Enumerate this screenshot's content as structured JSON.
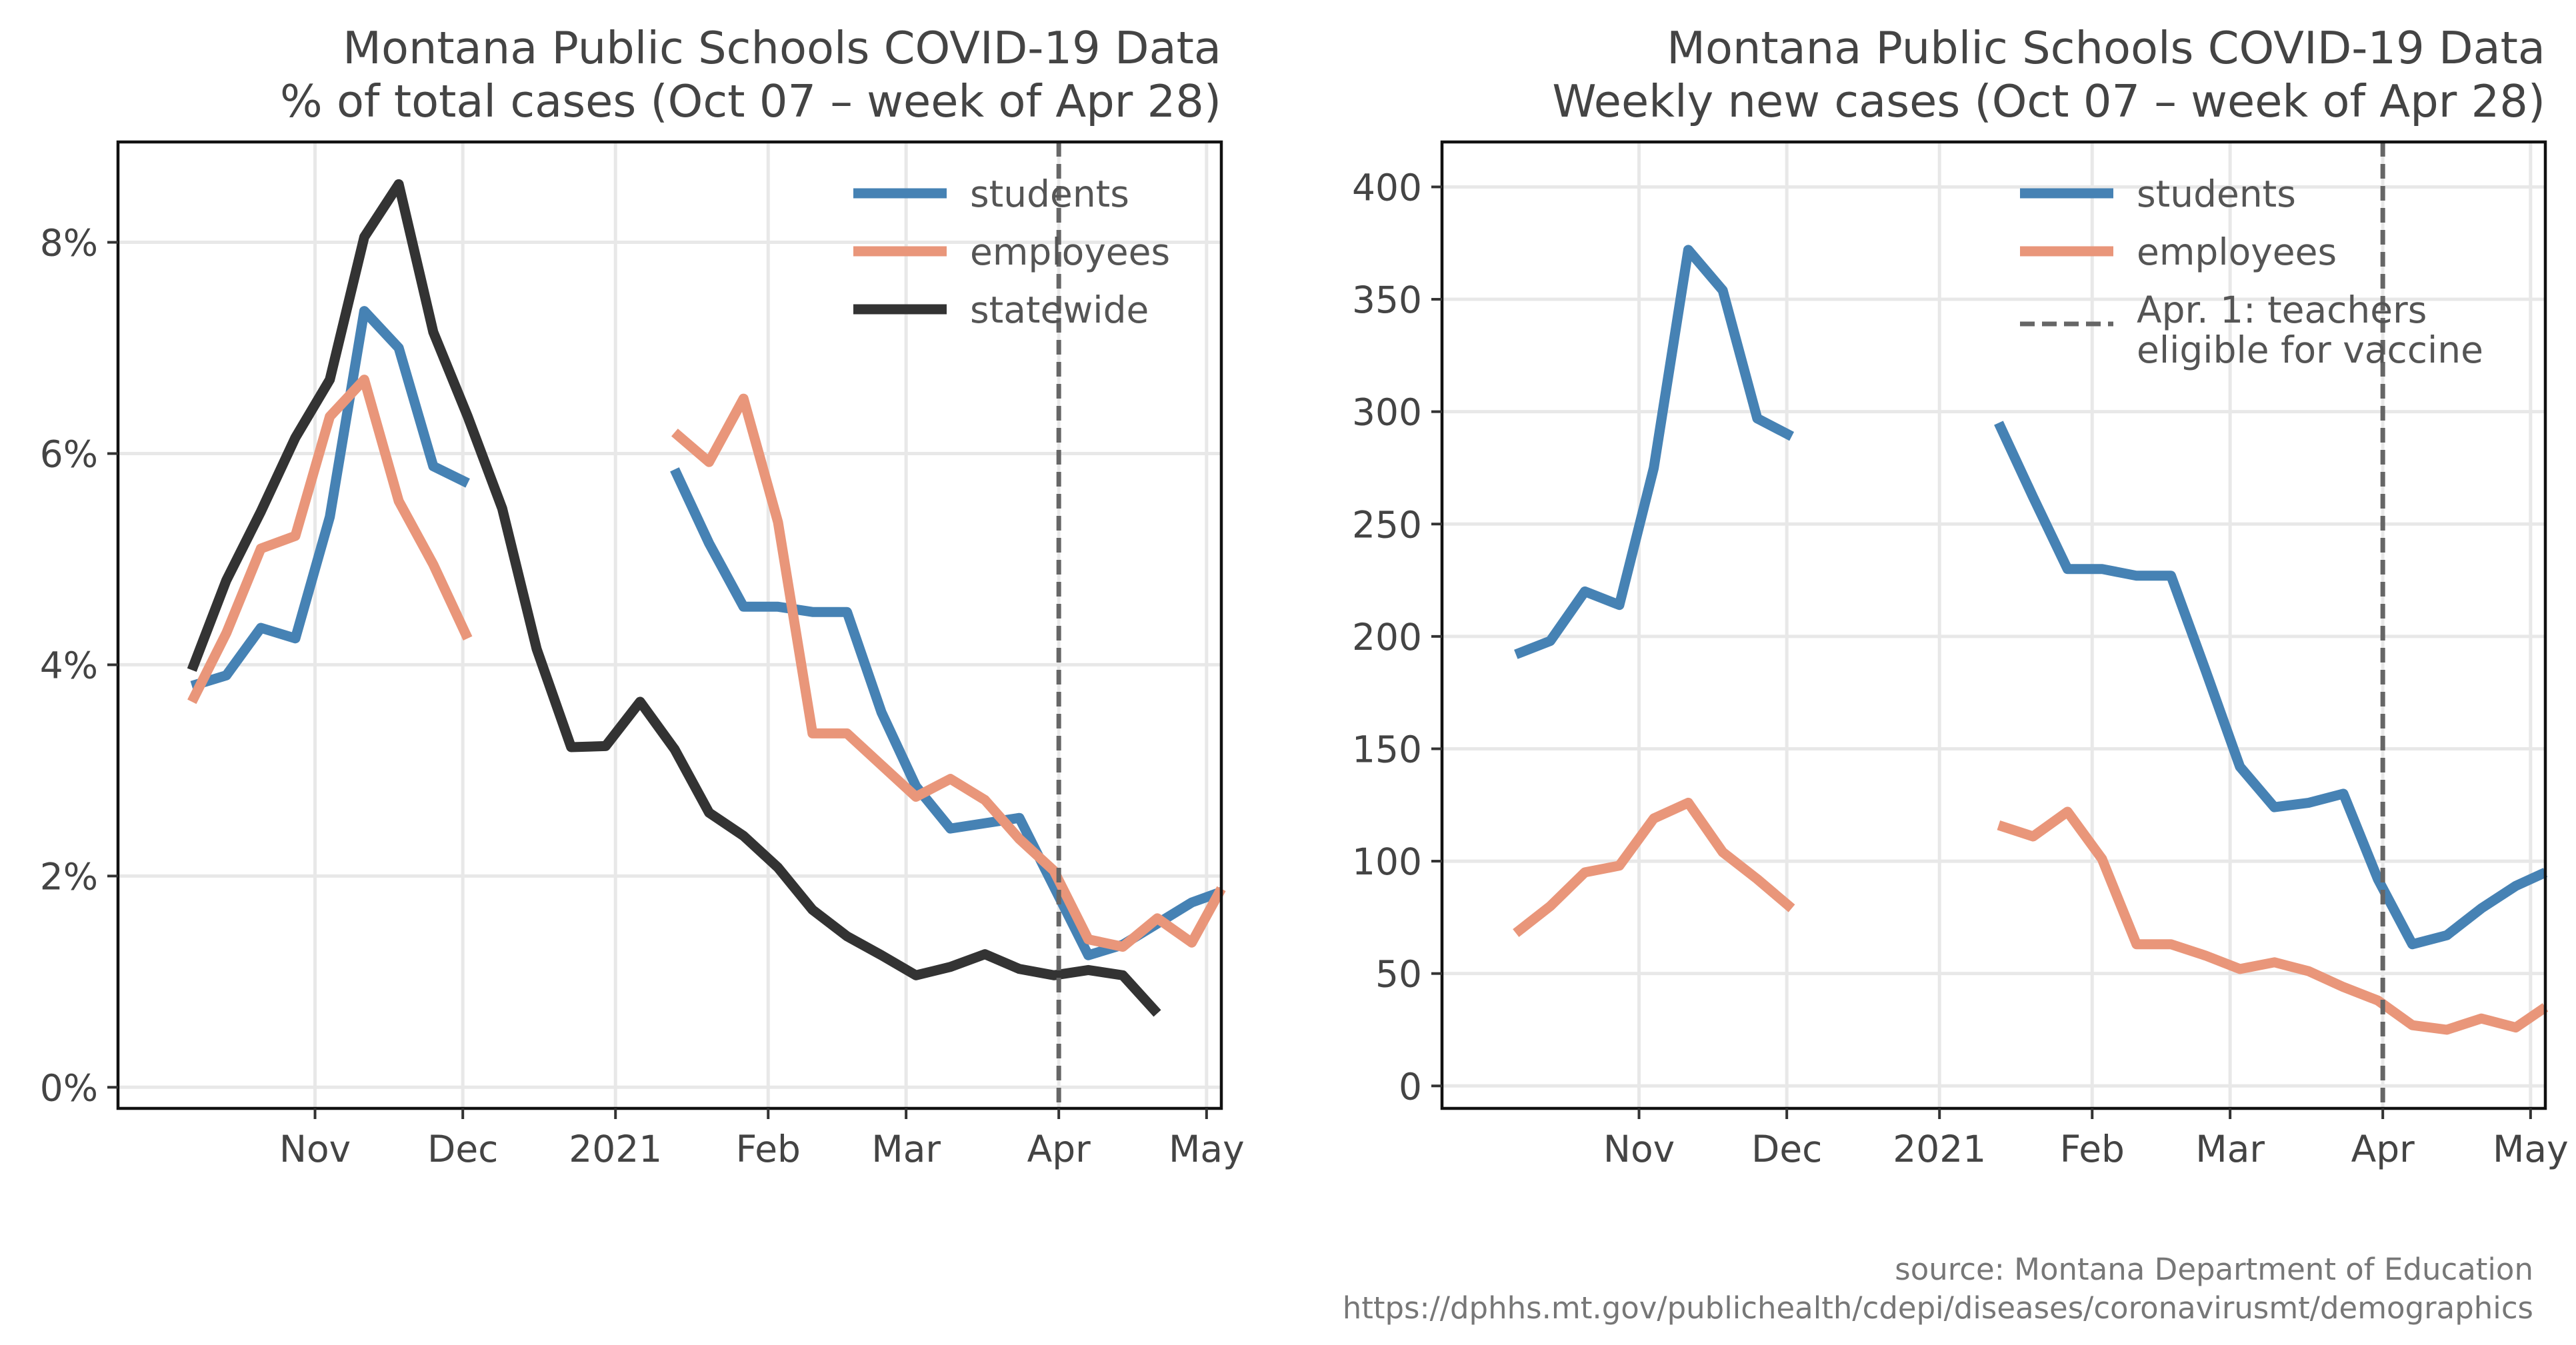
{
  "source": {
    "line1": "source: Montana Department of Education",
    "line2": "https://dphhs.mt.gov/publichealth/cdepi/diseases/coronavirusmt/demographics"
  },
  "colors": {
    "students": "#4682b4",
    "employees": "#e9967a",
    "statewide": "#333333",
    "vline": "#666666"
  },
  "chart_data": [
    {
      "type": "line",
      "title": "Montana Public Schools COVID-19 Data",
      "subtitle": "% of total cases (Oct 07 – week of Apr 28)",
      "xlabel": "",
      "ylabel": "",
      "x_axis": "date",
      "xlim": [
        "2020-09-22",
        "2021-05-04"
      ],
      "xticks": [
        {
          "date": "2020-11-01",
          "label": "Nov"
        },
        {
          "date": "2020-12-01",
          "label": "Dec"
        },
        {
          "date": "2021-01-01",
          "label": "2021"
        },
        {
          "date": "2021-02-01",
          "label": "Feb"
        },
        {
          "date": "2021-03-01",
          "label": "Mar"
        },
        {
          "date": "2021-04-01",
          "label": "Apr"
        },
        {
          "date": "2021-05-01",
          "label": "May"
        }
      ],
      "ylim": [
        -0.2,
        8.95
      ],
      "yticks": [
        {
          "value": 0,
          "label": "0%"
        },
        {
          "value": 2,
          "label": "2%"
        },
        {
          "value": 4,
          "label": "4%"
        },
        {
          "value": 6,
          "label": "6%"
        },
        {
          "value": 8,
          "label": "8%"
        }
      ],
      "grid": true,
      "legend_position": "top-right",
      "vline": {
        "date": "2021-04-01"
      },
      "series": [
        {
          "name": "students",
          "color_key": "students",
          "segments": [
            [
              [
                "2020-10-07",
                3.8
              ],
              [
                "2020-10-14",
                3.9
              ],
              [
                "2020-10-21",
                4.35
              ],
              [
                "2020-10-28",
                4.25
              ],
              [
                "2020-11-04",
                5.4
              ],
              [
                "2020-11-11",
                7.35
              ],
              [
                "2020-11-18",
                7.0
              ],
              [
                "2020-11-25",
                5.88
              ],
              [
                "2020-12-02",
                5.72
              ]
            ],
            [
              [
                "2021-01-13",
                5.85
              ],
              [
                "2021-01-20",
                5.15
              ],
              [
                "2021-01-27",
                4.55
              ],
              [
                "2021-02-03",
                4.55
              ],
              [
                "2021-02-10",
                4.5
              ],
              [
                "2021-02-17",
                4.5
              ],
              [
                "2021-02-24",
                3.55
              ],
              [
                "2021-03-03",
                2.85
              ],
              [
                "2021-03-10",
                2.45
              ],
              [
                "2021-03-17",
                2.5
              ],
              [
                "2021-03-24",
                2.55
              ],
              [
                "2021-03-31",
                1.9
              ],
              [
                "2021-04-07",
                1.25
              ],
              [
                "2021-04-14",
                1.35
              ],
              [
                "2021-04-21",
                1.55
              ],
              [
                "2021-04-28",
                1.75
              ],
              [
                "2021-05-04",
                1.85
              ]
            ]
          ]
        },
        {
          "name": "employees",
          "color_key": "employees",
          "segments": [
            [
              [
                "2020-10-07",
                3.65
              ],
              [
                "2020-10-14",
                4.3
              ],
              [
                "2020-10-21",
                5.1
              ],
              [
                "2020-10-28",
                5.22
              ],
              [
                "2020-11-04",
                6.35
              ],
              [
                "2020-11-11",
                6.7
              ],
              [
                "2020-11-18",
                5.55
              ],
              [
                "2020-11-25",
                4.95
              ],
              [
                "2020-12-02",
                4.25
              ]
            ],
            [
              [
                "2021-01-13",
                6.2
              ],
              [
                "2021-01-20",
                5.92
              ],
              [
                "2021-01-27",
                6.52
              ],
              [
                "2021-02-03",
                5.35
              ],
              [
                "2021-02-10",
                3.35
              ],
              [
                "2021-02-17",
                3.35
              ],
              [
                "2021-02-24",
                3.05
              ],
              [
                "2021-03-03",
                2.75
              ],
              [
                "2021-03-10",
                2.92
              ],
              [
                "2021-03-17",
                2.72
              ],
              [
                "2021-03-24",
                2.35
              ],
              [
                "2021-03-31",
                2.05
              ],
              [
                "2021-04-07",
                1.4
              ],
              [
                "2021-04-14",
                1.33
              ],
              [
                "2021-04-21",
                1.6
              ],
              [
                "2021-04-28",
                1.37
              ],
              [
                "2021-05-04",
                1.88
              ]
            ]
          ]
        },
        {
          "name": "statewide",
          "color_key": "statewide",
          "segments": [
            [
              [
                "2020-10-07",
                3.95
              ],
              [
                "2020-10-14",
                4.8
              ],
              [
                "2020-10-21",
                5.45
              ],
              [
                "2020-10-28",
                6.15
              ],
              [
                "2020-11-04",
                6.7
              ],
              [
                "2020-11-11",
                8.05
              ],
              [
                "2020-11-18",
                8.55
              ],
              [
                "2020-11-25",
                7.15
              ],
              [
                "2020-12-02",
                6.35
              ],
              [
                "2020-12-09",
                5.48
              ],
              [
                "2020-12-16",
                4.15
              ],
              [
                "2020-12-23",
                3.22
              ],
              [
                "2020-12-30",
                3.23
              ],
              [
                "2021-01-06",
                3.65
              ],
              [
                "2021-01-13",
                3.2
              ],
              [
                "2021-01-20",
                2.6
              ],
              [
                "2021-01-27",
                2.38
              ],
              [
                "2021-02-03",
                2.08
              ],
              [
                "2021-02-10",
                1.68
              ],
              [
                "2021-02-17",
                1.43
              ],
              [
                "2021-02-24",
                1.25
              ],
              [
                "2021-03-03",
                1.06
              ],
              [
                "2021-03-10",
                1.14
              ],
              [
                "2021-03-17",
                1.26
              ],
              [
                "2021-03-24",
                1.12
              ],
              [
                "2021-03-31",
                1.06
              ],
              [
                "2021-04-07",
                1.11
              ],
              [
                "2021-04-14",
                1.06
              ],
              [
                "2021-04-21",
                0.7
              ]
            ]
          ]
        }
      ],
      "legend": [
        {
          "label": "students",
          "color_key": "students",
          "style": "solid"
        },
        {
          "label": "employees",
          "color_key": "employees",
          "style": "solid"
        },
        {
          "label": "statewide",
          "color_key": "statewide",
          "style": "solid"
        }
      ]
    },
    {
      "type": "line",
      "title": "Montana Public Schools COVID-19 Data",
      "subtitle": "Weekly new cases (Oct 07 – week of Apr 28)",
      "xlabel": "",
      "ylabel": "",
      "x_axis": "date",
      "xlim": [
        "2020-09-22",
        "2021-05-04"
      ],
      "xticks": [
        {
          "date": "2020-11-01",
          "label": "Nov"
        },
        {
          "date": "2020-12-01",
          "label": "Dec"
        },
        {
          "date": "2021-01-01",
          "label": "2021"
        },
        {
          "date": "2021-02-01",
          "label": "Feb"
        },
        {
          "date": "2021-03-01",
          "label": "Mar"
        },
        {
          "date": "2021-04-01",
          "label": "Apr"
        },
        {
          "date": "2021-05-01",
          "label": "May"
        }
      ],
      "ylim": [
        -10,
        420
      ],
      "yticks": [
        {
          "value": 0,
          "label": "0"
        },
        {
          "value": 50,
          "label": "50"
        },
        {
          "value": 100,
          "label": "100"
        },
        {
          "value": 150,
          "label": "150"
        },
        {
          "value": 200,
          "label": "200"
        },
        {
          "value": 250,
          "label": "250"
        },
        {
          "value": 300,
          "label": "300"
        },
        {
          "value": 350,
          "label": "350"
        },
        {
          "value": 400,
          "label": "400"
        }
      ],
      "grid": true,
      "legend_position": "top-right",
      "vline": {
        "date": "2021-04-01"
      },
      "series": [
        {
          "name": "students",
          "color_key": "students",
          "segments": [
            [
              [
                "2020-10-07",
                192
              ],
              [
                "2020-10-14",
                198
              ],
              [
                "2020-10-21",
                220
              ],
              [
                "2020-10-28",
                214
              ],
              [
                "2020-11-04",
                275
              ],
              [
                "2020-11-11",
                372
              ],
              [
                "2020-11-18",
                354
              ],
              [
                "2020-11-25",
                297
              ],
              [
                "2020-12-02",
                289
              ]
            ],
            [
              [
                "2021-01-13",
                295
              ],
              [
                "2021-01-20",
                262
              ],
              [
                "2021-01-27",
                230
              ],
              [
                "2021-02-03",
                230
              ],
              [
                "2021-02-10",
                227
              ],
              [
                "2021-02-17",
                227
              ],
              [
                "2021-02-24",
                185
              ],
              [
                "2021-03-03",
                142
              ],
              [
                "2021-03-10",
                124
              ],
              [
                "2021-03-17",
                126
              ],
              [
                "2021-03-24",
                130
              ],
              [
                "2021-03-31",
                92
              ],
              [
                "2021-04-07",
                63
              ],
              [
                "2021-04-14",
                67
              ],
              [
                "2021-04-21",
                79
              ],
              [
                "2021-04-28",
                89
              ],
              [
                "2021-05-04",
                95
              ]
            ]
          ]
        },
        {
          "name": "employees",
          "color_key": "employees",
          "segments": [
            [
              [
                "2020-10-07",
                68
              ],
              [
                "2020-10-14",
                80
              ],
              [
                "2020-10-21",
                95
              ],
              [
                "2020-10-28",
                98
              ],
              [
                "2020-11-04",
                119
              ],
              [
                "2020-11-11",
                126
              ],
              [
                "2020-11-18",
                104
              ],
              [
                "2020-11-25",
                92
              ],
              [
                "2020-12-02",
                79
              ]
            ],
            [
              [
                "2021-01-13",
                116
              ],
              [
                "2021-01-20",
                111
              ],
              [
                "2021-01-27",
                122
              ],
              [
                "2021-02-03",
                101
              ],
              [
                "2021-02-10",
                63
              ],
              [
                "2021-02-17",
                63
              ],
              [
                "2021-02-24",
                58
              ],
              [
                "2021-03-03",
                52
              ],
              [
                "2021-03-10",
                55
              ],
              [
                "2021-03-17",
                51
              ],
              [
                "2021-03-24",
                44
              ],
              [
                "2021-03-31",
                38
              ],
              [
                "2021-04-07",
                27
              ],
              [
                "2021-04-14",
                25
              ],
              [
                "2021-04-21",
                30
              ],
              [
                "2021-04-28",
                26
              ],
              [
                "2021-05-04",
                35
              ]
            ]
          ]
        }
      ],
      "legend": [
        {
          "label": "students",
          "color_key": "students",
          "style": "solid"
        },
        {
          "label": "employees",
          "color_key": "employees",
          "style": "solid"
        },
        {
          "label": "Apr. 1: teachers\neligible for vaccine",
          "color_key": "vline",
          "style": "dashed"
        }
      ]
    }
  ]
}
